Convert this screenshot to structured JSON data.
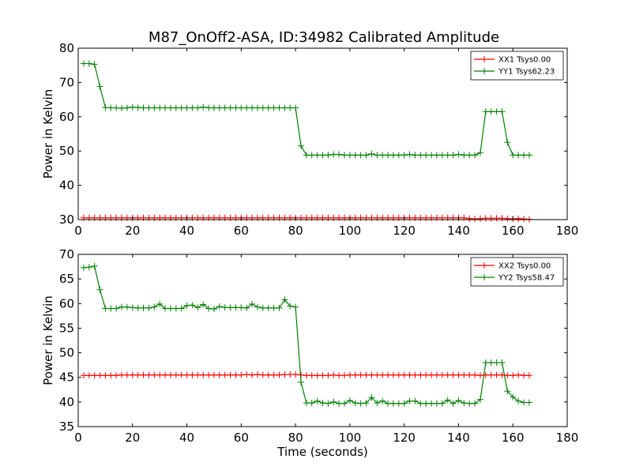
{
  "title": "M87_OnOff2-ASA, ID:34982 Calibrated Amplitude",
  "colors": {
    "red": "#ff0000",
    "green": "#008000",
    "frame": "#000000"
  },
  "chart_data": [
    {
      "type": "line",
      "ylabel": "Power in Kelvin",
      "xlabel": "",
      "xlim": [
        0,
        180
      ],
      "ylim": [
        30,
        80
      ],
      "xticks": [
        0,
        20,
        40,
        60,
        80,
        100,
        120,
        140,
        160,
        180
      ],
      "yticks": [
        30,
        40,
        50,
        60,
        70,
        80
      ],
      "legend_position": "top-right",
      "x": [
        2,
        4,
        6,
        8,
        10,
        12,
        14,
        16,
        18,
        20,
        22,
        24,
        26,
        28,
        30,
        32,
        34,
        36,
        38,
        40,
        42,
        44,
        46,
        48,
        50,
        52,
        54,
        56,
        58,
        60,
        62,
        64,
        66,
        68,
        70,
        72,
        74,
        76,
        78,
        80,
        82,
        84,
        86,
        88,
        90,
        92,
        94,
        96,
        98,
        100,
        102,
        104,
        106,
        108,
        110,
        112,
        114,
        116,
        118,
        120,
        122,
        124,
        126,
        128,
        130,
        132,
        134,
        136,
        138,
        140,
        142,
        144,
        146,
        148,
        150,
        152,
        154,
        156,
        158,
        160,
        162,
        164,
        166
      ],
      "series": [
        {
          "name": "XX1 Tsys0.00",
          "color": "#ff0000",
          "values": [
            30.5,
            30.5,
            30.5,
            30.5,
            30.5,
            30.5,
            30.5,
            30.5,
            30.5,
            30.5,
            30.5,
            30.5,
            30.5,
            30.5,
            30.5,
            30.5,
            30.5,
            30.5,
            30.5,
            30.5,
            30.5,
            30.5,
            30.5,
            30.5,
            30.5,
            30.5,
            30.5,
            30.5,
            30.5,
            30.5,
            30.5,
            30.5,
            30.5,
            30.5,
            30.5,
            30.5,
            30.5,
            30.5,
            30.5,
            30.5,
            30.5,
            30.5,
            30.5,
            30.5,
            30.5,
            30.5,
            30.5,
            30.5,
            30.5,
            30.5,
            30.5,
            30.5,
            30.5,
            30.5,
            30.5,
            30.5,
            30.5,
            30.5,
            30.5,
            30.5,
            30.5,
            30.5,
            30.5,
            30.5,
            30.5,
            30.5,
            30.5,
            30.5,
            30.5,
            30.5,
            30.5,
            30.3,
            30.2,
            30.3,
            30.4,
            30.4,
            30.4,
            30.4,
            30.3,
            30.2,
            30.3,
            30.2,
            30.1
          ]
        },
        {
          "name": "YY1 Tsys62.23",
          "color": "#008000",
          "values": [
            75.5,
            75.5,
            75.3,
            68.8,
            62.7,
            62.6,
            62.6,
            62.5,
            62.6,
            62.8,
            62.7,
            62.6,
            62.6,
            62.6,
            62.6,
            62.6,
            62.6,
            62.6,
            62.6,
            62.6,
            62.6,
            62.6,
            62.8,
            62.6,
            62.6,
            62.6,
            62.6,
            62.6,
            62.6,
            62.6,
            62.6,
            62.6,
            62.6,
            62.6,
            62.6,
            62.6,
            62.6,
            62.6,
            62.6,
            62.6,
            51.5,
            48.8,
            48.8,
            48.8,
            48.8,
            48.8,
            49.0,
            49.0,
            48.8,
            48.8,
            48.8,
            48.8,
            48.8,
            49.2,
            48.8,
            48.8,
            48.8,
            48.8,
            48.8,
            48.8,
            49.0,
            48.8,
            48.8,
            48.8,
            48.8,
            48.8,
            48.8,
            48.8,
            48.8,
            49.0,
            48.8,
            48.8,
            48.8,
            49.5,
            61.5,
            61.5,
            61.5,
            61.5,
            52.5,
            48.8,
            48.8,
            48.8,
            48.8
          ]
        }
      ]
    },
    {
      "type": "line",
      "ylabel": "Power in Kelvin",
      "xlabel": "Time (seconds)",
      "xlim": [
        0,
        180
      ],
      "ylim": [
        35,
        70
      ],
      "xticks": [
        0,
        20,
        40,
        60,
        80,
        100,
        120,
        140,
        160,
        180
      ],
      "yticks": [
        35,
        40,
        45,
        50,
        55,
        60,
        65,
        70
      ],
      "legend_position": "top-right",
      "x": [
        2,
        4,
        6,
        8,
        10,
        12,
        14,
        16,
        18,
        20,
        22,
        24,
        26,
        28,
        30,
        32,
        34,
        36,
        38,
        40,
        42,
        44,
        46,
        48,
        50,
        52,
        54,
        56,
        58,
        60,
        62,
        64,
        66,
        68,
        70,
        72,
        74,
        76,
        78,
        80,
        82,
        84,
        86,
        88,
        90,
        92,
        94,
        96,
        98,
        100,
        102,
        104,
        106,
        108,
        110,
        112,
        114,
        116,
        118,
        120,
        122,
        124,
        126,
        128,
        130,
        132,
        134,
        136,
        138,
        140,
        142,
        144,
        146,
        148,
        150,
        152,
        154,
        156,
        158,
        160,
        162,
        164,
        166
      ],
      "series": [
        {
          "name": "XX2 Tsys0.00",
          "color": "#ff0000",
          "values": [
            45.4,
            45.4,
            45.4,
            45.4,
            45.4,
            45.4,
            45.4,
            45.5,
            45.5,
            45.5,
            45.5,
            45.5,
            45.5,
            45.5,
            45.5,
            45.5,
            45.5,
            45.5,
            45.5,
            45.5,
            45.5,
            45.5,
            45.5,
            45.5,
            45.5,
            45.5,
            45.5,
            45.5,
            45.5,
            45.5,
            45.6,
            45.5,
            45.6,
            45.5,
            45.5,
            45.5,
            45.5,
            45.6,
            45.6,
            45.6,
            45.5,
            45.4,
            45.4,
            45.4,
            45.4,
            45.4,
            45.5,
            45.4,
            45.4,
            45.5,
            45.5,
            45.5,
            45.5,
            45.5,
            45.5,
            45.5,
            45.5,
            45.5,
            45.5,
            45.5,
            45.5,
            45.5,
            45.5,
            45.5,
            45.5,
            45.5,
            45.5,
            45.5,
            45.5,
            45.5,
            45.5,
            45.5,
            45.5,
            45.4,
            45.5,
            45.5,
            45.5,
            45.5,
            45.4,
            45.4,
            45.5,
            45.4,
            45.4
          ]
        },
        {
          "name": "YY2 Tsys58.47",
          "color": "#008000",
          "values": [
            67.3,
            67.4,
            67.6,
            62.8,
            59.0,
            59.0,
            59.0,
            59.3,
            59.3,
            59.2,
            59.1,
            59.1,
            59.1,
            59.3,
            59.9,
            59.0,
            59.0,
            59.0,
            59.0,
            59.6,
            59.7,
            59.2,
            59.8,
            59.0,
            58.9,
            59.4,
            59.2,
            59.2,
            59.2,
            59.2,
            59.1,
            59.9,
            59.3,
            59.1,
            59.1,
            59.1,
            59.1,
            60.8,
            59.5,
            59.3,
            44.0,
            39.8,
            39.8,
            40.2,
            39.8,
            39.7,
            40.0,
            39.7,
            39.7,
            40.3,
            39.8,
            39.7,
            39.8,
            40.9,
            39.8,
            40.2,
            39.7,
            39.7,
            39.7,
            39.7,
            40.2,
            40.2,
            39.7,
            39.7,
            39.7,
            39.7,
            39.7,
            40.4,
            39.7,
            40.3,
            39.8,
            39.7,
            39.7,
            40.5,
            48.0,
            48.0,
            48.0,
            48.0,
            42.2,
            41.0,
            40.2,
            39.9,
            39.9
          ]
        }
      ]
    }
  ]
}
